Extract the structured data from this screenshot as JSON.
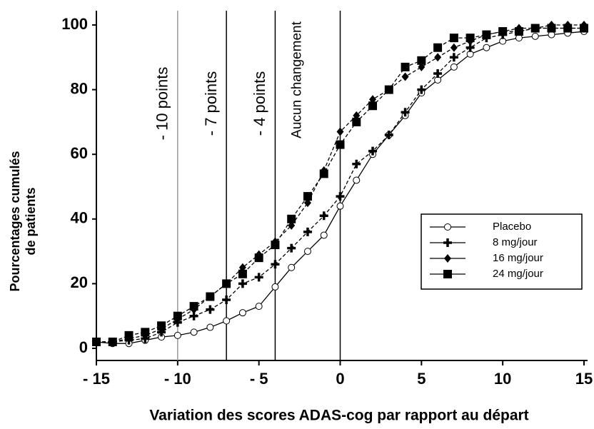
{
  "chart_data": {
    "type": "line",
    "x_label": "Variation des scores ADAS-cog par rapport au départ",
    "y_label": [
      "Pourcentages cumulés",
      "de patients"
    ],
    "x": [
      -15,
      -14,
      -13,
      -12,
      -11,
      -10,
      -9,
      -8,
      -7,
      -6,
      -5,
      -4,
      -3,
      -2,
      -1,
      0,
      1,
      2,
      3,
      4,
      5,
      6,
      7,
      8,
      9,
      10,
      11,
      12,
      13,
      14,
      15
    ],
    "series": [
      {
        "name": "Placebo",
        "color": "#000000",
        "marker": "circle",
        "dashed": false,
        "values": [
          2,
          1.5,
          1.5,
          2.5,
          3.5,
          4,
          5,
          6.5,
          8.5,
          11,
          13,
          19,
          25,
          30,
          35,
          44,
          52,
          60,
          66,
          72,
          79,
          83,
          87,
          91,
          93,
          95,
          96,
          96.5,
          97,
          97.5,
          98
        ]
      },
      {
        "name": "8 mg/jour",
        "color": "#000000",
        "marker": "cross",
        "dashed": true,
        "values": [
          2,
          2,
          2.5,
          3,
          5,
          8,
          10,
          12,
          15,
          20,
          22,
          26,
          31,
          36,
          41,
          47,
          57,
          61,
          66,
          73,
          80,
          85,
          90,
          93,
          96,
          97,
          98,
          99,
          99,
          99,
          99
        ]
      },
      {
        "name": "16 mg/jour",
        "color": "#000000",
        "marker": "diamond",
        "dashed": true,
        "values": [
          2,
          2,
          3,
          4,
          6,
          9,
          12,
          16,
          20,
          25,
          29,
          33,
          38,
          45,
          55,
          67,
          72,
          77,
          80,
          84,
          87,
          90,
          93,
          95,
          97,
          98,
          99,
          99,
          100,
          100,
          100
        ]
      },
      {
        "name": "24 mg/jour",
        "color": "#000000",
        "marker": "square",
        "dashed": true,
        "values": [
          2,
          2,
          4,
          5,
          7,
          10,
          13,
          16,
          20,
          23,
          28,
          32,
          40,
          47,
          54,
          63,
          70,
          75,
          80,
          87,
          89,
          93,
          96,
          96,
          97,
          98,
          98,
          99,
          99,
          99,
          99
        ]
      }
    ],
    "annotations": [
      {
        "x": -10,
        "label": "- 10 points",
        "color": "#999999"
      },
      {
        "x": -7,
        "label": "- 7 points",
        "color": "#000000"
      },
      {
        "x": -4,
        "label": "- 4 points",
        "color": "#000000"
      },
      {
        "x": 0,
        "label": "Aucun  changement",
        "color": "#000000"
      }
    ],
    "xlim": [
      -15,
      15
    ],
    "ylim": [
      0,
      100
    ],
    "xticks": [
      {
        "value": -15,
        "label": "- 15"
      },
      {
        "value": -10,
        "label": "- 10"
      },
      {
        "value": -5,
        "label": "- 5"
      },
      0,
      5,
      10,
      15
    ],
    "yticks": [
      0,
      20,
      40,
      60,
      80,
      100
    ],
    "legend": "lower-right"
  }
}
